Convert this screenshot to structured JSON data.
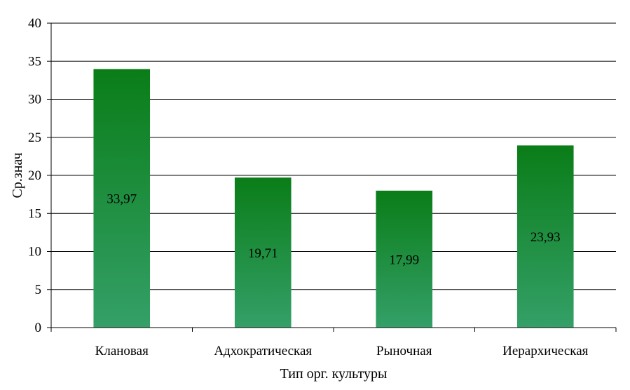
{
  "chart_data": {
    "type": "bar",
    "categories": [
      "Клановая",
      "Адхократическая",
      "Рыночная",
      "Иерархическая"
    ],
    "values": [
      33.97,
      19.71,
      17.99,
      23.93
    ],
    "value_labels": [
      "33,97",
      "19,71",
      "17,99",
      "23,93"
    ],
    "title": "",
    "xlabel": "Тип орг. культуры",
    "ylabel": "Ср.знач",
    "ylim": [
      0,
      40
    ],
    "yticks": [
      0,
      5,
      10,
      15,
      20,
      25,
      30,
      35,
      40
    ],
    "ytick_labels": [
      "0",
      "5",
      "10",
      "15",
      "20",
      "25",
      "30",
      "35",
      "40"
    ],
    "grid": true,
    "legend": "none",
    "colors": {
      "bar_top": "#0a7d18",
      "bar_bottom": "#34a068",
      "gridline": "#000000"
    }
  }
}
